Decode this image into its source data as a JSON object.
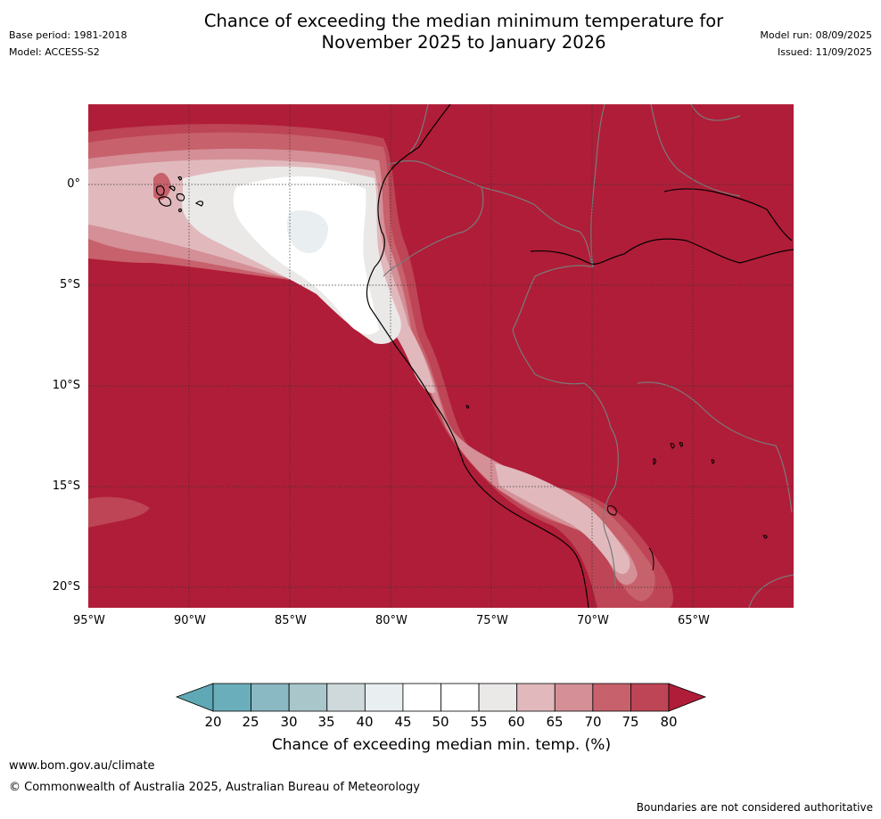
{
  "header": {
    "title_line1": "Chance of exceeding the median minimum temperature for",
    "title_line2": "November 2025 to January 2026",
    "base_period": "Base period: 1981-2018",
    "model": "Model: ACCESS-S2",
    "model_run": "Model run: 08/09/2025",
    "issued": "Issued: 11/09/2025"
  },
  "map": {
    "lat_labels": [
      "0°",
      "5°S",
      "10°S",
      "15°S",
      "20°S"
    ],
    "lon_labels": [
      "95°W",
      "90°W",
      "85°W",
      "80°W",
      "75°W",
      "70°W",
      "65°W"
    ]
  },
  "colorbar": {
    "ticks": [
      "20",
      "25",
      "30",
      "35",
      "40",
      "45",
      "50",
      "55",
      "60",
      "65",
      "70",
      "75",
      "80"
    ],
    "colors": [
      "#5fa8b5",
      "#6aaebb",
      "#8ab8c3",
      "#a9c6cb",
      "#cfd9dc",
      "#e9eef0",
      "#ffffff",
      "#ffffff",
      "#ebe9e8",
      "#e1b9bd",
      "#d48f97",
      "#c7616b",
      "#bd4555",
      "#b01d38"
    ],
    "label": "Chance of exceeding median min. temp. (%)"
  },
  "footer": {
    "url": "www.bom.gov.au/climate",
    "copyright": "© Commonwealth of Australia 2025, Australian Bureau of Meteorology",
    "disclaimer": "Boundaries are not considered authoritative"
  }
}
